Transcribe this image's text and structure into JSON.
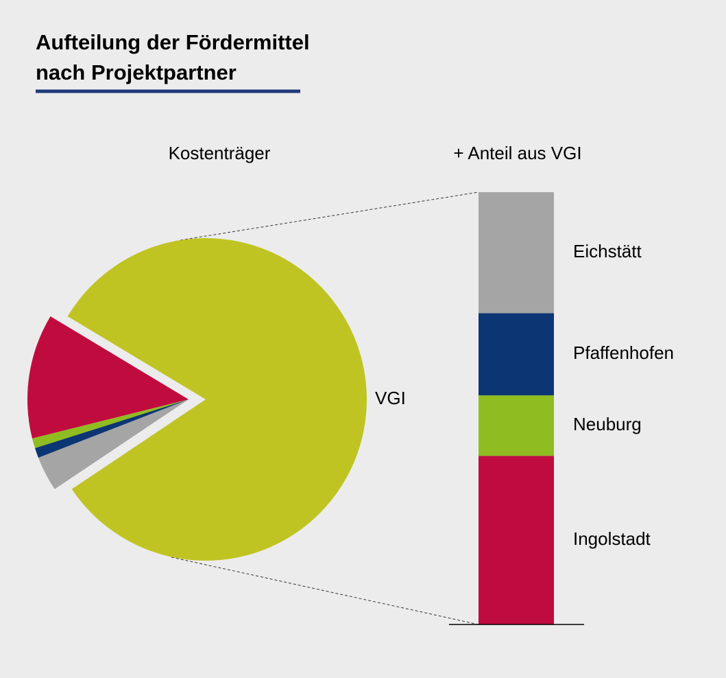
{
  "title": "Aufteilung der Fördermittel nach Projektpartner",
  "title_lines": [
    "Aufteilung der Fördermittel",
    "nach Projektpartner"
  ],
  "chart_data": [
    {
      "type": "pie",
      "title": "Kostenträger",
      "categories": [
        "VGI",
        null,
        null,
        null,
        null
      ],
      "values": [
        82,
        3.5,
        1,
        1,
        12.5
      ],
      "colors": [
        "#c0c423",
        "#a5a5a5",
        "#0c3673",
        "#8fbc21",
        "#c00b3f"
      ]
    },
    {
      "type": "stacked_bar",
      "title": "+ Anteil aus VGI",
      "ylim": [
        0,
        100
      ],
      "series": [
        {
          "name": "Ingolstadt",
          "color": "#c00b3f",
          "values": [
            39
          ]
        },
        {
          "name": "Neuburg",
          "color": "#8fbc21",
          "values": [
            14
          ]
        },
        {
          "name": "Pfaffenhofen",
          "color": "#0c3673",
          "values": [
            19
          ]
        },
        {
          "name": "Eichstätt",
          "color": "#a5a5a5",
          "values": [
            28
          ]
        }
      ]
    }
  ]
}
